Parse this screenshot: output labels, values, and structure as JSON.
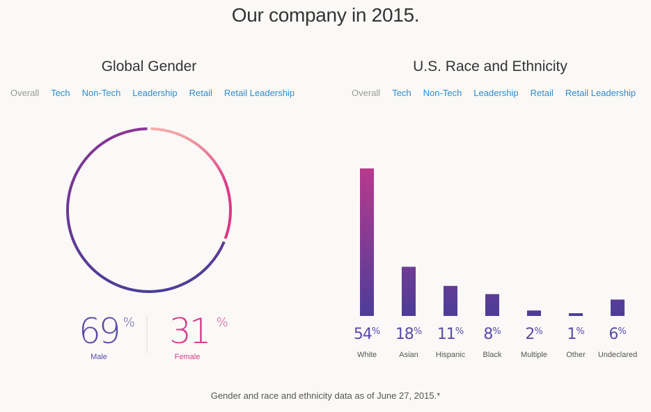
{
  "page": {
    "title": "Our company in 2015.",
    "footnote": "Gender and race and ethnicity data as of June 27, 2015.*"
  },
  "gender": {
    "title": "Global Gender",
    "tabs": [
      "Overall",
      "Tech",
      "Non-Tech",
      "Leadership",
      "Retail",
      "Retail Leadership"
    ],
    "active_tab": "Overall"
  },
  "race": {
    "title": "U.S. Race and Ethnicity",
    "tabs": [
      "Overall",
      "Tech",
      "Non-Tech",
      "Leadership",
      "Retail",
      "Retail Leadership"
    ],
    "active_tab": "Overall"
  },
  "colors": {
    "male": "#5b3fa8",
    "female": "#d63d8a",
    "bar_bottom": "#4f3f98",
    "bar_top": "#b83a8e",
    "link": "#2c8ccf",
    "inactive_tab": "#999999"
  },
  "chart_data": [
    {
      "type": "pie",
      "title": "Global Gender",
      "categories": [
        "Male",
        "Female"
      ],
      "values": [
        69,
        31
      ],
      "value_labels": [
        "69",
        "31"
      ],
      "unit": "%"
    },
    {
      "type": "bar",
      "title": "U.S. Race and Ethnicity",
      "categories": [
        "White",
        "Asian",
        "Hispanic",
        "Black",
        "Multiple",
        "Other",
        "Undeclared"
      ],
      "values": [
        54,
        18,
        11,
        8,
        2,
        1,
        6
      ],
      "value_labels": [
        "54",
        "18",
        "11",
        "8",
        "2",
        "1",
        "6"
      ],
      "unit": "%",
      "ylim": [
        0,
        54
      ],
      "grid": false
    }
  ]
}
